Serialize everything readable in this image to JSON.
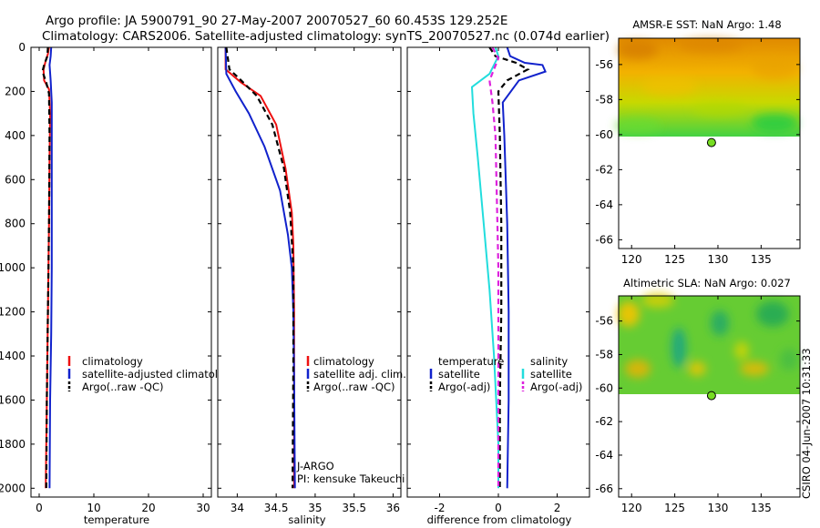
{
  "header": {
    "line1": "Argo profile: JA 5900791_90 27-May-2007 20070527_60 60.453S 129.252E",
    "line2": "Climatology: CARS2006. Satellite-adjusted climatology: synTS_20070527.nc (0.074d earlier)"
  },
  "side_stamp": "CSIRO 04-Jun-2007 10:31:33",
  "colors": {
    "red": "#ee1111",
    "blue": "#1122cc",
    "black": "#000000",
    "cyan": "#22dddd",
    "magenta": "#dd22dd",
    "marker": "#77dd22"
  },
  "chart_data": [
    {
      "type": "line",
      "name": "temperature",
      "xlabel": "temperature",
      "ylabel": "",
      "xlim": [
        -1.5,
        31.5
      ],
      "ylim": [
        2040,
        0
      ],
      "xticks": [
        0,
        10,
        20,
        30
      ],
      "yticks": [
        0,
        200,
        400,
        600,
        800,
        1000,
        1200,
        1400,
        1600,
        1800,
        2000
      ],
      "ytick_labels": [
        "0",
        "200",
        "400",
        "600",
        "800",
        "1000",
        "1200",
        "1400",
        "1600",
        "1800",
        "2000"
      ],
      "legend": [
        "climatology",
        "satellite-adjusted climatology",
        "Argo(..raw -QC)"
      ],
      "series": [
        {
          "name": "climatology",
          "color": "red",
          "dash": false,
          "points": [
            [
              1.8,
              0
            ],
            [
              1.6,
              30
            ],
            [
              1.2,
              60
            ],
            [
              0.8,
              100
            ],
            [
              0.9,
              150
            ],
            [
              1.8,
              190
            ],
            [
              2.0,
              300
            ],
            [
              1.9,
              500
            ],
            [
              1.8,
              800
            ],
            [
              1.6,
              1200
            ],
            [
              1.4,
              1600
            ],
            [
              1.2,
              2000
            ]
          ]
        },
        {
          "name": "satellite-adjusted climatology",
          "color": "blue",
          "dash": false,
          "points": [
            [
              2.2,
              0
            ],
            [
              2.1,
              40
            ],
            [
              1.9,
              80
            ],
            [
              2.1,
              150
            ],
            [
              2.3,
              250
            ],
            [
              2.3,
              400
            ],
            [
              2.3,
              700
            ],
            [
              2.3,
              1000
            ],
            [
              2.2,
              1300
            ],
            [
              2.0,
              1600
            ],
            [
              1.9,
              2000
            ]
          ]
        },
        {
          "name": "Argo(..raw -QC)",
          "color": "black",
          "dash": true,
          "points": [
            [
              1.6,
              0
            ],
            [
              1.5,
              40
            ],
            [
              0.9,
              80
            ],
            [
              0.6,
              110
            ],
            [
              1.3,
              160
            ],
            [
              1.8,
              210
            ],
            [
              1.9,
              400
            ],
            [
              1.8,
              800
            ],
            [
              1.6,
              1200
            ],
            [
              1.4,
              1600
            ],
            [
              1.3,
              2000
            ]
          ]
        }
      ]
    },
    {
      "type": "line",
      "name": "salinity",
      "xlabel": "salinity",
      "ylabel": "",
      "xlim": [
        33.75,
        36.1
      ],
      "ylim": [
        2040,
        0
      ],
      "xticks": [
        34,
        34.5,
        35,
        35.5,
        36
      ],
      "xtick_labels": [
        "34",
        "34.5",
        "35",
        "35.5",
        "36"
      ],
      "legend": [
        "climatology",
        "satellite adj. clim.",
        "Argo(..raw -QC)"
      ],
      "annotation": [
        "J-ARGO",
        "PI: kensuke Takeuchi"
      ],
      "series": [
        {
          "name": "climatology",
          "color": "red",
          "dash": false,
          "points": [
            [
              33.85,
              0
            ],
            [
              33.85,
              100
            ],
            [
              34.05,
              160
            ],
            [
              34.3,
              220
            ],
            [
              34.5,
              350
            ],
            [
              34.62,
              550
            ],
            [
              34.7,
              750
            ],
            [
              34.72,
              900
            ],
            [
              34.73,
              1200
            ],
            [
              34.73,
              2000
            ]
          ]
        },
        {
          "name": "satellite adj. clim.",
          "color": "blue",
          "dash": false,
          "points": [
            [
              33.85,
              0
            ],
            [
              33.86,
              120
            ],
            [
              33.98,
              200
            ],
            [
              34.15,
              300
            ],
            [
              34.35,
              450
            ],
            [
              34.55,
              650
            ],
            [
              34.65,
              850
            ],
            [
              34.7,
              1000
            ],
            [
              34.72,
              1200
            ],
            [
              34.73,
              1500
            ],
            [
              34.74,
              2000
            ]
          ]
        },
        {
          "name": "Argo(..raw -QC)",
          "color": "black",
          "dash": true,
          "points": [
            [
              33.86,
              0
            ],
            [
              33.9,
              100
            ],
            [
              34.05,
              150
            ],
            [
              34.25,
              220
            ],
            [
              34.45,
              350
            ],
            [
              34.6,
              550
            ],
            [
              34.68,
              750
            ],
            [
              34.72,
              1000
            ],
            [
              34.72,
              1400
            ],
            [
              34.71,
              2000
            ]
          ]
        }
      ]
    },
    {
      "type": "line",
      "name": "difference",
      "xlabel": "difference from climatology",
      "ylabel": "",
      "xlim": [
        -3.1,
        3.1
      ],
      "ylim": [
        2040,
        0
      ],
      "xticks": [
        -2,
        0,
        2
      ],
      "legend_headers": [
        "temperature",
        "salinity"
      ],
      "legend": [
        "satellite",
        "Argo(-adj)",
        "satellite",
        "Argo(-adj)"
      ],
      "series": [
        {
          "name": "temperature satellite",
          "color": "blue",
          "dash": false,
          "points": [
            [
              0.3,
              0
            ],
            [
              0.4,
              40
            ],
            [
              0.9,
              70
            ],
            [
              1.5,
              80
            ],
            [
              1.6,
              110
            ],
            [
              0.7,
              150
            ],
            [
              0.15,
              250
            ],
            [
              0.2,
              400
            ],
            [
              0.3,
              800
            ],
            [
              0.35,
              1200
            ],
            [
              0.35,
              1600
            ],
            [
              0.3,
              2000
            ]
          ]
        },
        {
          "name": "temperature Argo(-adj)",
          "color": "black",
          "dash": true,
          "points": [
            [
              -0.3,
              0
            ],
            [
              -0.1,
              40
            ],
            [
              0.6,
              70
            ],
            [
              1.0,
              100
            ],
            [
              0.3,
              150
            ],
            [
              0,
              200
            ],
            [
              0.05,
              400
            ],
            [
              0.1,
              800
            ],
            [
              0.1,
              1200
            ],
            [
              0.05,
              1600
            ],
            [
              0.05,
              2000
            ]
          ]
        },
        {
          "name": "salinity satellite",
          "color": "cyan",
          "dash": false,
          "points": [
            [
              -0.1,
              0
            ],
            [
              0,
              40
            ],
            [
              -0.3,
              120
            ],
            [
              -0.9,
              180
            ],
            [
              -0.85,
              300
            ],
            [
              -0.7,
              500
            ],
            [
              -0.5,
              800
            ],
            [
              -0.3,
              1100
            ],
            [
              -0.15,
              1400
            ],
            [
              0,
              1800
            ],
            [
              0,
              2000
            ]
          ]
        },
        {
          "name": "salinity Argo(-adj)",
          "color": "magenta",
          "dash": true,
          "points": [
            [
              -0.2,
              0
            ],
            [
              0,
              50
            ],
            [
              -0.3,
              150
            ],
            [
              -0.2,
              250
            ],
            [
              -0.1,
              400
            ],
            [
              -0.05,
              700
            ],
            [
              0,
              1000
            ],
            [
              0,
              1500
            ],
            [
              0,
              2000
            ]
          ]
        }
      ]
    },
    {
      "type": "heatmap",
      "name": "sst-map",
      "title": "AMSR-E SST: NaN Argo: 1.48",
      "xlim": [
        118.5,
        139.5
      ],
      "ylim": [
        -66.5,
        -54.5
      ],
      "xticks": [
        120,
        125,
        130,
        135
      ],
      "yticks": [
        -56,
        -58,
        -60,
        -62,
        -64,
        -66
      ],
      "data_lat_range": [
        -60.2,
        -54.5
      ],
      "marker": {
        "lon": 129.252,
        "lat": -60.453
      }
    },
    {
      "type": "heatmap",
      "name": "sla-map",
      "title": "Altimetric SLA: NaN Argo: 0.027",
      "xlim": [
        118.5,
        139.5
      ],
      "ylim": [
        -66.5,
        -54.5
      ],
      "xticks": [
        120,
        125,
        130,
        135
      ],
      "yticks": [
        -56,
        -58,
        -60,
        -62,
        -64,
        -66
      ],
      "data_lat_range": [
        -60.2,
        -54.5
      ],
      "marker": {
        "lon": 129.252,
        "lat": -60.453
      }
    }
  ]
}
